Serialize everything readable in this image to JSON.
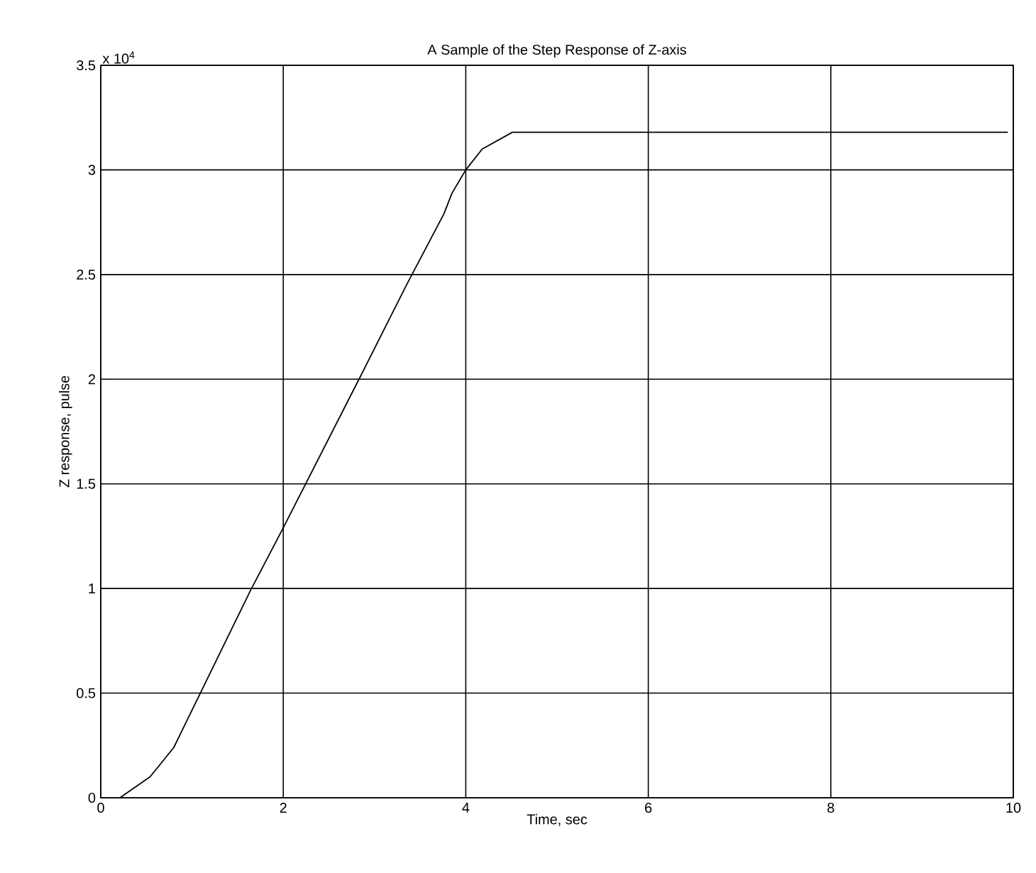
{
  "chart_data": {
    "type": "line",
    "title": "A Sample of the Step Response of Z-axis",
    "xlabel": "Time, sec",
    "ylabel": "Z response, pulse",
    "annotations": [
      "x 10$^{4}$"
    ],
    "x": [
      0.21,
      0.54,
      0.8,
      1.64,
      2.0,
      2.83,
      3.35,
      3.76,
      3.85,
      4.0,
      4.18,
      4.51,
      9.94
    ],
    "series": [
      {
        "color": "#000000",
        "values": [
          0,
          0.1,
          0.24,
          0.99,
          1.29,
          2.0,
          2.45,
          2.79,
          2.89,
          3.0,
          3.1,
          3.18,
          3.18
        ]
      }
    ],
    "xlim": [
      0,
      10
    ],
    "ylim": [
      0,
      3.5
    ],
    "xticks": [
      0,
      2,
      4,
      6,
      8,
      10
    ],
    "yticks": [
      0,
      0.5,
      1,
      1.5,
      2,
      2.5,
      3,
      3.5
    ],
    "grid": true,
    "marker": "none",
    "line_style": "solid"
  }
}
